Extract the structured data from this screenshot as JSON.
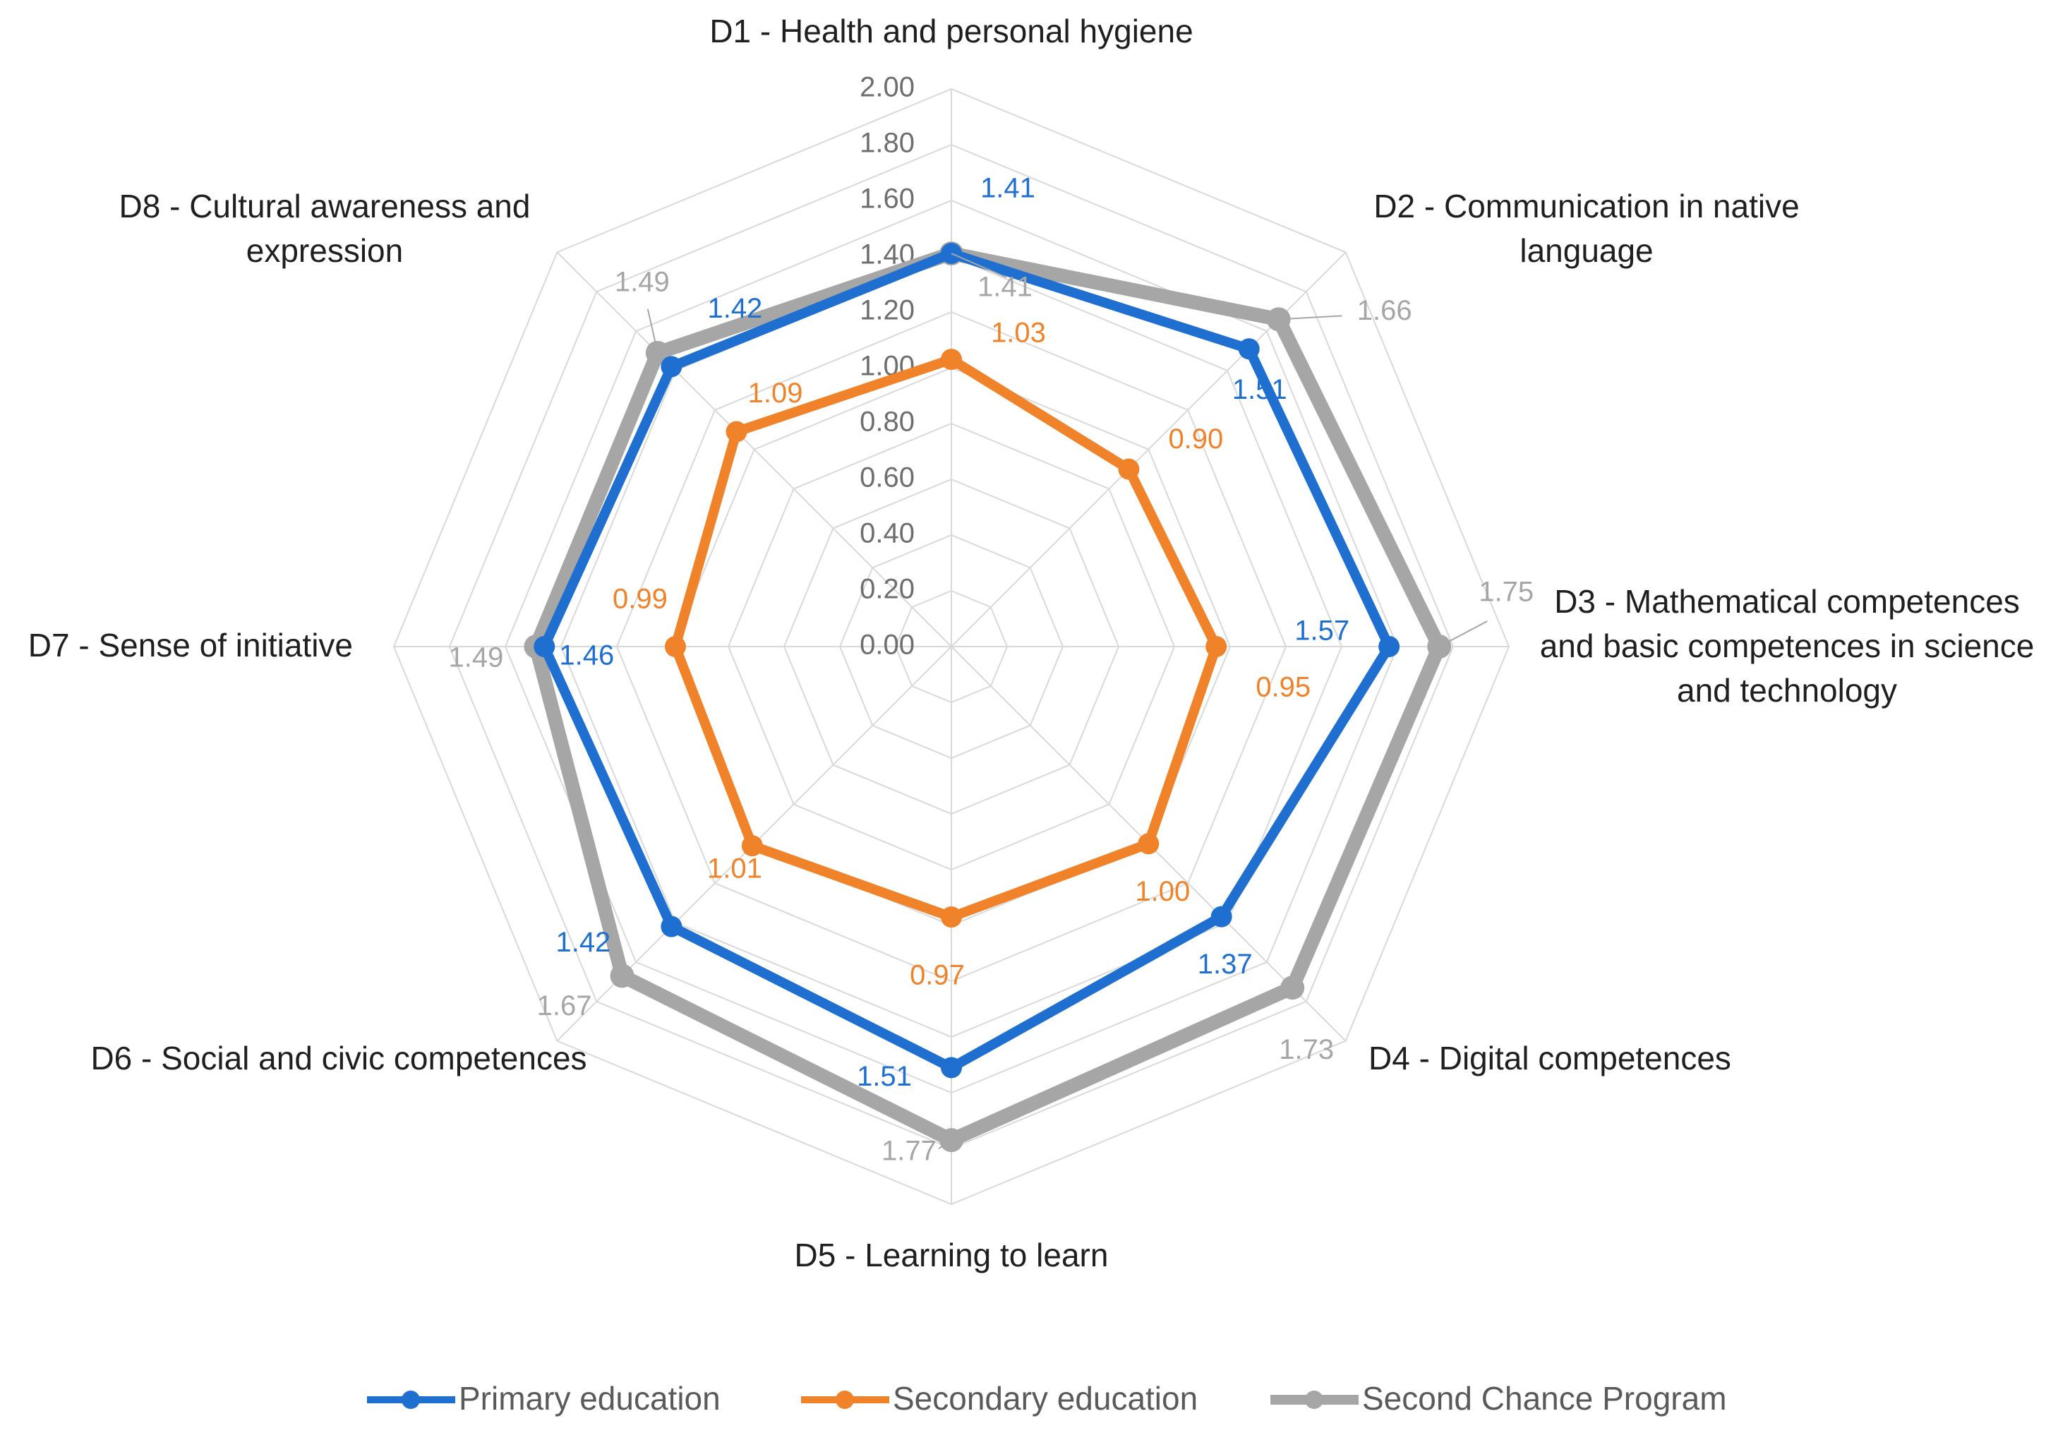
{
  "chart_data": {
    "type": "radar",
    "categories": [
      "D1 - Health and personal hygiene",
      "D2 - Communication in native language",
      "D3 - Mathematical competences and basic competences in science and technology",
      "D4 - Digital competences",
      "D5 - Learning to learn",
      "D6 - Social and civic competences",
      "D7 - Sense of initiative",
      "D8 - Cultural awareness and expression"
    ],
    "category_lines": [
      [
        "D1 - Health and personal hygiene"
      ],
      [
        "D2 - Communication in native",
        "language"
      ],
      [
        "D3 - Mathematical competences",
        "and basic competences in science",
        "and technology"
      ],
      [
        "D4 - Digital competences"
      ],
      [
        "D5 - Learning to learn"
      ],
      [
        "D6 - Social and civic competences"
      ],
      [
        "D7 - Sense of initiative"
      ],
      [
        "D8 - Cultural awareness and",
        "expression"
      ]
    ],
    "series": [
      {
        "name": "Primary education",
        "color": "#1f6fd0",
        "values": [
          1.41,
          1.51,
          1.57,
          1.37,
          1.51,
          1.42,
          1.46,
          1.42
        ],
        "labels": [
          "1.41",
          "1.51",
          "1.57",
          "1.37",
          "1.51",
          "1.42",
          "1.46",
          "1.42"
        ]
      },
      {
        "name": "Secondary education",
        "color": "#f0822a",
        "values": [
          1.03,
          0.9,
          0.95,
          1.0,
          0.97,
          1.01,
          0.99,
          1.09
        ],
        "labels": [
          "1.03",
          "0.90",
          "0.95",
          "1.00",
          "0.97",
          "1.01",
          "0.99",
          "1.09"
        ]
      },
      {
        "name": "Second Chance Program",
        "color": "#a6a6a6",
        "values": [
          1.41,
          1.66,
          1.75,
          1.73,
          1.77,
          1.67,
          1.49,
          1.49
        ],
        "labels": [
          "1.41",
          "1.66",
          "1.75",
          "1.73",
          "1.77",
          "1.67",
          "1.49",
          "1.49"
        ]
      }
    ],
    "rlim": [
      0,
      2
    ],
    "ticks": [
      "0.00",
      "0.20",
      "0.40",
      "0.60",
      "0.80",
      "1.00",
      "1.20",
      "1.40",
      "1.60",
      "1.80",
      "2.00"
    ],
    "grid_color": "#d9d9d9",
    "tick_color": "#6e6e6e",
    "legend_position": "bottom"
  }
}
